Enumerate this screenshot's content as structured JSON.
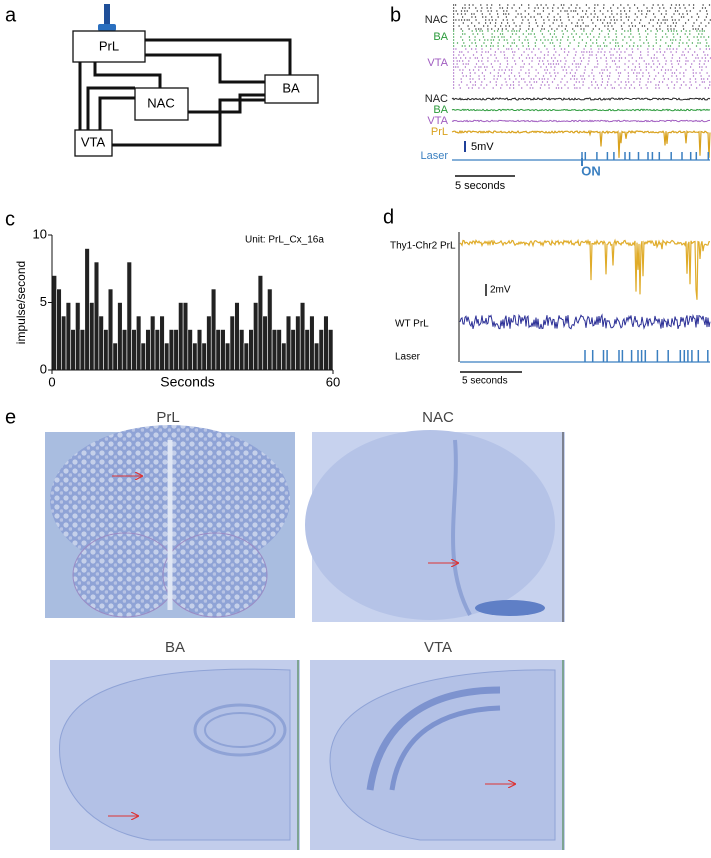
{
  "chart_data": {
    "type": "histogram",
    "panel_label": "c",
    "annotation": "Unit: PrL_Cx_16a",
    "y_label": "impulse/second",
    "x_label": "Seconds",
    "color": "#222222",
    "bins": [
      0,
      1,
      2,
      3,
      4,
      5,
      6,
      7,
      8,
      9,
      10,
      11,
      12,
      13,
      14,
      15,
      16,
      17,
      18,
      19,
      20,
      21,
      22,
      23,
      24,
      25,
      26,
      27,
      28,
      29,
      30,
      31,
      32,
      33,
      34,
      35,
      36,
      37,
      38,
      39,
      40,
      41,
      42,
      43,
      44,
      45,
      46,
      47,
      48,
      49,
      50,
      51,
      52,
      53,
      54,
      55,
      56,
      57,
      58,
      59,
      60
    ],
    "values": [
      7,
      6,
      4,
      5,
      3,
      5,
      3,
      9,
      5,
      8,
      4,
      3,
      6,
      2,
      5,
      3,
      8,
      3,
      4,
      2,
      3,
      4,
      3,
      4,
      2,
      3,
      3,
      5,
      5,
      3,
      2,
      3,
      2,
      4,
      6,
      3,
      3,
      2,
      4,
      5,
      3,
      2,
      3,
      5,
      7,
      4,
      6,
      3,
      3,
      2,
      4,
      3,
      4,
      5,
      3,
      4,
      2,
      3,
      4,
      3
    ],
    "xlim": [
      0,
      60
    ],
    "xticks": [
      0,
      60
    ],
    "ylim": [
      0,
      10
    ],
    "yticks": [
      0,
      5,
      10
    ],
    "grid": false
  },
  "panel_a": {
    "label": "a",
    "nodes": [
      "PrL",
      "NAC",
      "BA",
      "VTA"
    ]
  },
  "panel_b": {
    "label": "b",
    "raster_labels": [
      "NAC",
      "BA",
      "VTA"
    ],
    "trace_labels": [
      "NAC",
      "BA",
      "VTA",
      "PrL"
    ],
    "laser": "Laser",
    "scale": "5mV",
    "time_scale": "5 seconds",
    "on": "ON"
  },
  "panel_d": {
    "label": "d",
    "traces": [
      "Thy1-Chr2 PrL",
      "WT PrL",
      "Laser"
    ],
    "scale": "2mV",
    "time_scale": "5 seconds"
  },
  "panel_e": {
    "label": "e",
    "sections": [
      "PrL",
      "NAC",
      "BA",
      "VTA"
    ]
  }
}
